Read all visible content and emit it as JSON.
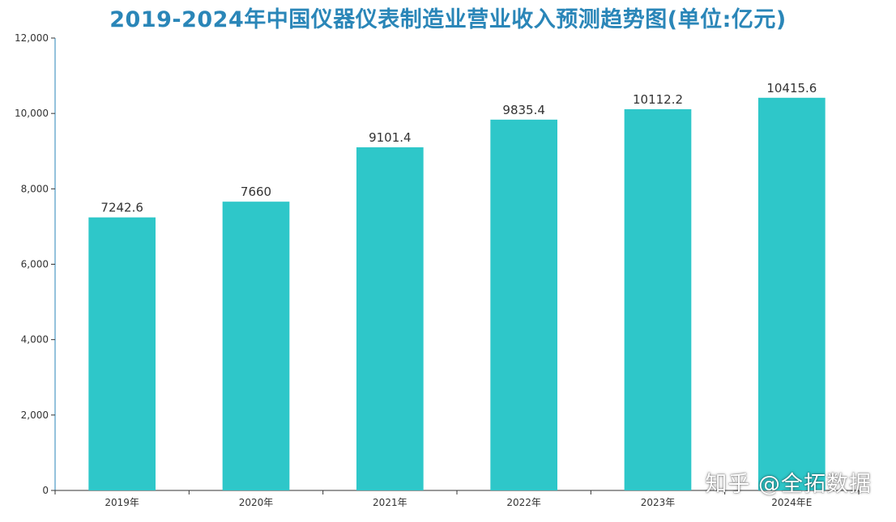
{
  "page": {
    "title": "2019-2024年中国仪器仪表制造业营业收入预测趋势图(单位:亿元)",
    "watermark": "知乎 @全拓数据"
  },
  "colors": {
    "bar": "#2ec7c9",
    "title": "#2a86b8",
    "axis": "#333333",
    "y_axis_line": "#2a86b8"
  },
  "chart_data": {
    "type": "bar",
    "title": "2019-2024年中国仪器仪表制造业营业收入预测趋势图(单位:亿元)",
    "categories": [
      "2019年",
      "2020年",
      "2021年",
      "2022年",
      "2023年",
      "2024年E"
    ],
    "values": [
      7242.6,
      7660,
      9101.4,
      9835.4,
      10112.2,
      10415.6
    ],
    "data_labels": [
      "7242.6",
      "7660",
      "9101.4",
      "9835.4",
      "10112.2",
      "10415.6"
    ],
    "ylim": [
      0,
      12000
    ],
    "yticks": [
      0,
      2000,
      4000,
      6000,
      8000,
      10000,
      12000
    ],
    "ytick_labels": [
      "0",
      "2,000",
      "4,000",
      "6,000",
      "8,000",
      "10,000",
      "12,000"
    ],
    "xlabel": "",
    "ylabel": "",
    "grid": false,
    "legend": "none"
  }
}
